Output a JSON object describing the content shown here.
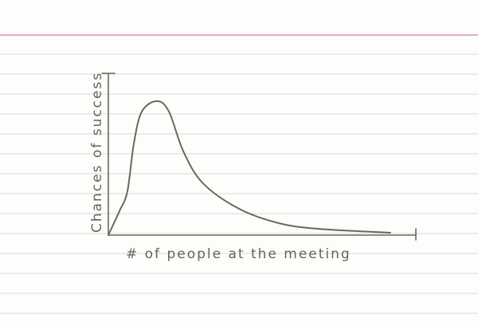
{
  "chart_data": {
    "type": "line",
    "title": "",
    "xlabel": "# of people at the meeting",
    "ylabel": "Chances of success",
    "xlim": [
      0,
      10
    ],
    "ylim": [
      0,
      10
    ],
    "grid": false,
    "style": "hand-drawn pencil on ruled index card",
    "colors": {
      "pencil": "#6e665e",
      "ruled_line": "#d9d9dc",
      "header_line": "#e58bb0"
    },
    "series": [
      {
        "x": [
          0,
          0.36,
          0.62,
          0.83,
          1.09,
          1.58,
          1.97,
          2.44,
          3.08,
          4.25,
          5.54,
          6.84,
          9.17
        ],
        "y": [
          0,
          1.48,
          2.71,
          5.67,
          7.64,
          8.28,
          7.64,
          5.17,
          3.2,
          1.63,
          0.74,
          0.39,
          0.15
        ]
      }
    ]
  }
}
